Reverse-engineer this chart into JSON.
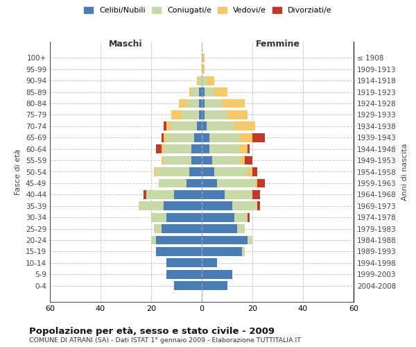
{
  "age_groups": [
    "0-4",
    "5-9",
    "10-14",
    "15-19",
    "20-24",
    "25-29",
    "30-34",
    "35-39",
    "40-44",
    "45-49",
    "50-54",
    "55-59",
    "60-64",
    "65-69",
    "70-74",
    "75-79",
    "80-84",
    "85-89",
    "90-94",
    "95-99",
    "100+"
  ],
  "birth_years": [
    "2004-2008",
    "1999-2003",
    "1994-1998",
    "1989-1993",
    "1984-1988",
    "1979-1983",
    "1974-1978",
    "1969-1973",
    "1964-1968",
    "1959-1963",
    "1954-1958",
    "1949-1953",
    "1944-1948",
    "1939-1943",
    "1934-1938",
    "1929-1933",
    "1924-1928",
    "1919-1923",
    "1914-1918",
    "1909-1913",
    "≤ 1908"
  ],
  "males": {
    "celibi": [
      11,
      14,
      14,
      18,
      18,
      16,
      14,
      15,
      11,
      6,
      5,
      4,
      4,
      3,
      2,
      1,
      1,
      1,
      0,
      0,
      0
    ],
    "coniugati": [
      0,
      0,
      0,
      0,
      2,
      3,
      6,
      10,
      11,
      11,
      13,
      11,
      11,
      11,
      10,
      7,
      5,
      3,
      1,
      0,
      0
    ],
    "vedovi": [
      0,
      0,
      0,
      0,
      0,
      0,
      0,
      0,
      0,
      0,
      1,
      1,
      1,
      1,
      2,
      4,
      3,
      1,
      1,
      0,
      0
    ],
    "divorziati": [
      0,
      0,
      0,
      0,
      0,
      0,
      0,
      0,
      1,
      0,
      0,
      0,
      2,
      1,
      1,
      0,
      0,
      0,
      0,
      0,
      0
    ]
  },
  "females": {
    "nubili": [
      10,
      12,
      6,
      16,
      18,
      14,
      13,
      12,
      9,
      6,
      5,
      4,
      3,
      3,
      2,
      1,
      1,
      1,
      0,
      0,
      0
    ],
    "coniugate": [
      0,
      0,
      0,
      1,
      2,
      3,
      5,
      10,
      11,
      15,
      13,
      11,
      12,
      12,
      11,
      9,
      7,
      4,
      2,
      0,
      0
    ],
    "vedove": [
      0,
      0,
      0,
      0,
      0,
      0,
      0,
      0,
      0,
      1,
      2,
      2,
      3,
      5,
      8,
      8,
      9,
      5,
      3,
      1,
      1
    ],
    "divorziate": [
      0,
      0,
      0,
      0,
      0,
      0,
      1,
      1,
      3,
      3,
      2,
      3,
      1,
      5,
      0,
      0,
      0,
      0,
      0,
      0,
      0
    ]
  },
  "colors": {
    "celibi": "#4a7db5",
    "coniugati": "#c8d9a8",
    "vedovi": "#f5c96a",
    "divorziati": "#c0392b"
  },
  "xlim": 60,
  "title": "Popolazione per età, sesso e stato civile - 2009",
  "subtitle": "COMUNE DI ATRANI (SA) - Dati ISTAT 1° gennaio 2009 - Elaborazione TUTTITALIA.IT",
  "ylabel": "Fasce di età",
  "ylabel_right": "Anni di nascita",
  "legend_labels": [
    "Celibi/Nubili",
    "Coniugati/e",
    "Vedovi/e",
    "Divorziati/e"
  ],
  "maschi_label": "Maschi",
  "femmine_label": "Femmine"
}
